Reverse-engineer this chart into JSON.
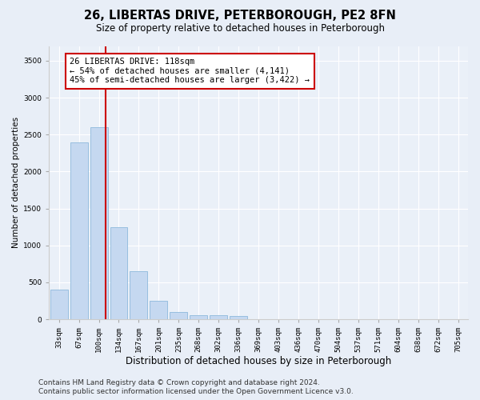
{
  "title": "26, LIBERTAS DRIVE, PETERBOROUGH, PE2 8FN",
  "subtitle": "Size of property relative to detached houses in Peterborough",
  "xlabel": "Distribution of detached houses by size in Peterborough",
  "ylabel": "Number of detached properties",
  "categories": [
    "33sqm",
    "67sqm",
    "100sqm",
    "134sqm",
    "167sqm",
    "201sqm",
    "235sqm",
    "268sqm",
    "302sqm",
    "336sqm",
    "369sqm",
    "403sqm",
    "436sqm",
    "470sqm",
    "504sqm",
    "537sqm",
    "571sqm",
    "604sqm",
    "638sqm",
    "672sqm",
    "705sqm"
  ],
  "values": [
    400,
    2400,
    2600,
    1250,
    650,
    250,
    100,
    60,
    60,
    40,
    0,
    0,
    0,
    0,
    0,
    0,
    0,
    0,
    0,
    0,
    0
  ],
  "bar_color": "#c5d8f0",
  "bar_edge_color": "#8db8dc",
  "vline_x_index": 2,
  "vline_x_offset": 0.35,
  "vline_color": "#cc0000",
  "annotation_text": "26 LIBERTAS DRIVE: 118sqm\n← 54% of detached houses are smaller (4,141)\n45% of semi-detached houses are larger (3,422) →",
  "annotation_box_color": "#ffffff",
  "annotation_box_edge_color": "#cc0000",
  "ylim": [
    0,
    3700
  ],
  "yticks": [
    0,
    500,
    1000,
    1500,
    2000,
    2500,
    3000,
    3500
  ],
  "background_color": "#e8eef7",
  "plot_bg_color": "#eaf0f8",
  "grid_color": "#ffffff",
  "footer_line1": "Contains HM Land Registry data © Crown copyright and database right 2024.",
  "footer_line2": "Contains public sector information licensed under the Open Government Licence v3.0.",
  "title_fontsize": 10.5,
  "subtitle_fontsize": 8.5,
  "xlabel_fontsize": 8.5,
  "ylabel_fontsize": 7.5,
  "tick_fontsize": 6.5,
  "annotation_fontsize": 7.5,
  "footer_fontsize": 6.5
}
